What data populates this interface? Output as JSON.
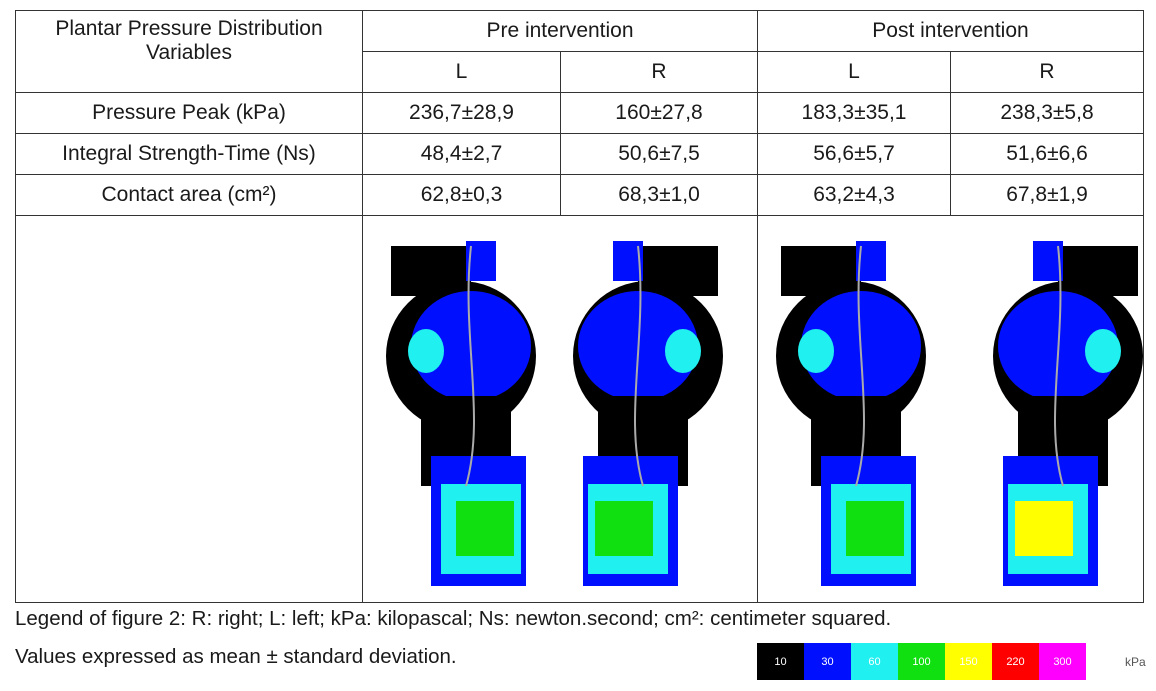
{
  "table": {
    "header": {
      "variable": "Plantar Pressure Distribution Variables",
      "groups": [
        "Pre intervention",
        "Post intervention"
      ],
      "sides": [
        "L",
        "R",
        "L",
        "R"
      ]
    },
    "rows": [
      [
        "Pressure Peak (kPa)",
        "236,7±28,9",
        "160±27,8",
        "183,3±35,1",
        "238,3±5,8"
      ],
      [
        "Integral Strength-Time (Ns)",
        "48,4±2,7",
        "50,6±7,5",
        "56,6±5,7",
        "51,6±6,6"
      ],
      [
        "Contact area (cm²)",
        "62,8±0,3",
        "68,3±1,0",
        "63,2±4,3",
        "67,8±1,9"
      ]
    ]
  },
  "caption": [
    "Legend of figure 2: R: right; L: left; kPa: kilopascal; Ns: newton.second; cm²: centimeter squared.",
    "Values expressed as mean ± standard deviation."
  ],
  "scale": {
    "steps": [
      {
        "label": 10,
        "color": "#000000"
      },
      {
        "label": 30,
        "color": "#0010ff"
      },
      {
        "label": 60,
        "color": "#20f0f0"
      },
      {
        "label": 100,
        "color": "#10e010"
      },
      {
        "label": 150,
        "color": "#ffff00"
      },
      {
        "label": 220,
        "color": "#ff0000"
      },
      {
        "label": 300,
        "color": "#ff00ff"
      }
    ],
    "unit": "kPa"
  }
}
